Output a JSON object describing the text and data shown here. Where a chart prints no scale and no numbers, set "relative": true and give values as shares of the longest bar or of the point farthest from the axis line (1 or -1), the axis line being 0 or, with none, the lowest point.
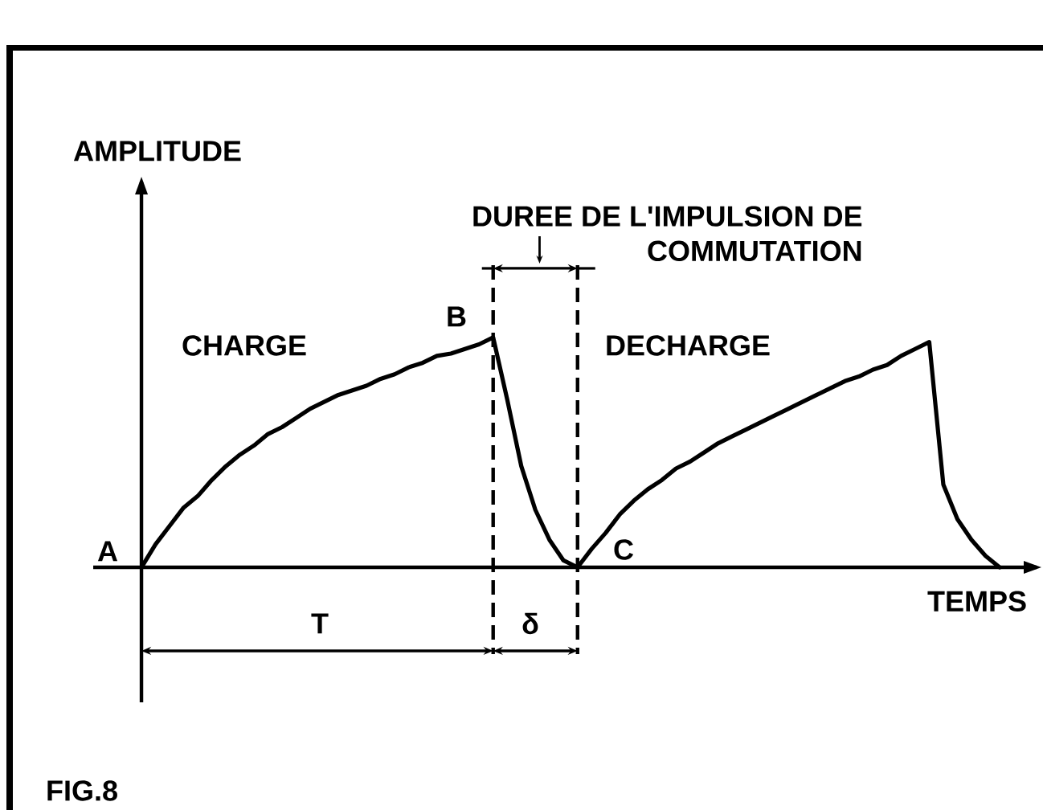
{
  "chart_data": {
    "type": "line",
    "relative": true,
    "xlabel": "TEMPS",
    "categories": [
      null,
      null,
      null,
      null,
      null,
      null,
      null,
      null,
      null,
      null,
      null,
      null,
      null,
      null,
      null,
      null,
      null,
      null,
      null,
      null,
      null,
      null,
      null,
      null,
      null,
      null,
      null,
      null,
      null,
      null,
      null,
      null,
      null,
      null,
      null,
      null,
      null,
      null,
      null,
      null,
      null,
      null,
      null,
      null,
      null,
      null,
      null,
      null,
      null,
      null,
      null,
      null,
      null,
      null,
      null,
      null,
      null,
      null,
      null,
      null,
      null,
      null
    ],
    "series": [
      {
        "color": "#000000",
        "values": [
          0,
          0.1,
          0.18,
          0.26,
          0.31,
          0.38,
          0.44,
          0.49,
          0.53,
          0.58,
          0.61,
          0.65,
          0.69,
          0.72,
          0.75,
          0.77,
          0.79,
          0.82,
          0.84,
          0.87,
          0.89,
          0.92,
          0.93,
          0.95,
          0.97,
          1.0,
          0.73,
          0.44,
          0.25,
          0.12,
          0.03,
          0,
          0.08,
          0.15,
          0.23,
          0.29,
          0.34,
          0.38,
          0.43,
          0.46,
          0.5,
          0.54,
          0.57,
          0.6,
          0.63,
          0.66,
          0.69,
          0.72,
          0.75,
          0.78,
          0.81,
          0.83,
          0.86,
          0.88,
          0.92,
          0.95,
          0.98,
          0.36,
          0.21,
          0.12,
          0.05,
          0
        ]
      }
    ],
    "annotations": [
      "AMPLITUDE",
      "A",
      "B",
      "C",
      "CHARGE",
      "DECHARGE",
      "DUREE DE L'IMPULSION DE COMMUTATION",
      "T",
      "δ",
      "FIG.8"
    ]
  }
}
